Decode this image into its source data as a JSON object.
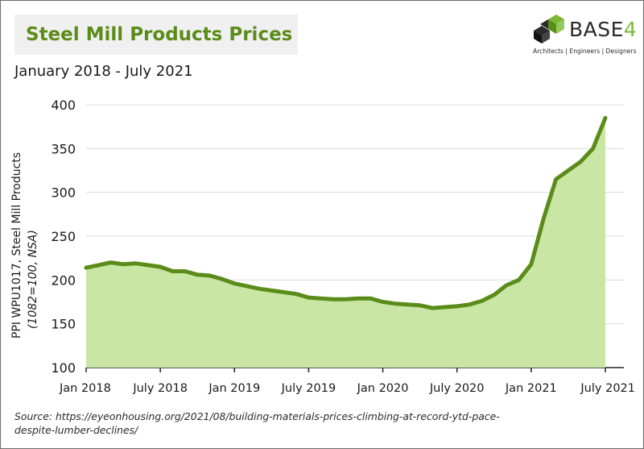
{
  "header": {
    "title": "Steel Mill Products Prices",
    "subtitle": "January 2018 - July 2021"
  },
  "logo": {
    "name": "BASE",
    "name_suffix": "4",
    "tagline": "Architects | Engineers | Designers",
    "accent_color": "#7cb832"
  },
  "source": "Source: https://eyeonhousing.org/2021/08/building-materials-prices-climbing-at-record-ytd-pace-despite-lumber-declines/",
  "chart_data": {
    "type": "area",
    "title": "Steel Mill Products Prices",
    "subtitle": "January 2018 - July 2021",
    "ylabel": "PPI WPU1017, Steel Mill Products",
    "ylabel_note": "(1082=100, NSA)",
    "xlabel": "",
    "ylim": [
      100,
      400
    ],
    "yticks": [
      100,
      150,
      200,
      250,
      300,
      350,
      400
    ],
    "xticks": [
      "Jan 2018",
      "July 2018",
      "Jan 2019",
      "July 2019",
      "Jan 2020",
      "July 2020",
      "Jan 2021",
      "July 2021"
    ],
    "grid": true,
    "line_color": "#5b8c1a",
    "fill_color": "#c9e6a4",
    "series": [
      {
        "x": [
          "2018-01",
          "2018-02",
          "2018-03",
          "2018-04",
          "2018-05",
          "2018-06",
          "2018-07",
          "2018-08",
          "2018-09",
          "2018-10",
          "2018-11",
          "2018-12",
          "2019-01",
          "2019-02",
          "2019-03",
          "2019-04",
          "2019-05",
          "2019-06",
          "2019-07",
          "2019-08",
          "2019-09",
          "2019-10",
          "2019-11",
          "2019-12",
          "2020-01",
          "2020-02",
          "2020-03",
          "2020-04",
          "2020-05",
          "2020-06",
          "2020-07",
          "2020-08",
          "2020-09",
          "2020-10",
          "2020-11",
          "2020-12",
          "2021-01",
          "2021-02",
          "2021-03",
          "2021-04",
          "2021-05",
          "2021-06",
          "2021-07"
        ],
        "values": [
          214,
          217,
          220,
          218,
          219,
          217,
          215,
          210,
          210,
          206,
          205,
          201,
          196,
          193,
          190,
          188,
          186,
          184,
          180,
          179,
          178,
          178,
          179,
          179,
          175,
          173,
          172,
          171,
          168,
          169,
          170,
          172,
          176,
          183,
          194,
          200,
          218,
          270,
          315,
          325,
          335,
          350,
          385
        ]
      }
    ]
  }
}
